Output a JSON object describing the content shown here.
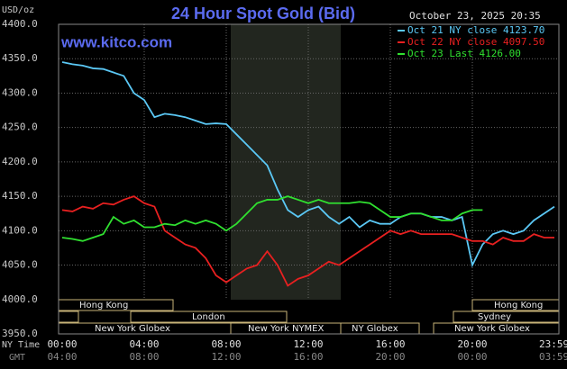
{
  "chart_data": {
    "type": "line",
    "title": "24 Hour Spot Gold (Bid)",
    "subtitle": "October 23, 2025 20:35",
    "y_label": "USD/oz",
    "watermark": "www.kitco.com",
    "x_row_labels": [
      "NY Time",
      "GMT"
    ],
    "x": [
      0,
      0.5,
      1,
      1.5,
      2,
      2.5,
      3,
      3.5,
      4,
      4.5,
      5,
      5.5,
      6,
      6.5,
      7,
      7.5,
      8,
      8.5,
      9,
      9.5,
      10,
      10.5,
      11,
      11.5,
      12,
      12.5,
      13,
      13.5,
      14,
      14.5,
      15,
      15.5,
      16,
      16.5,
      17,
      17.5,
      18,
      18.5,
      19,
      19.5,
      20,
      20.5,
      21,
      21.5,
      22,
      22.5,
      23,
      23.5,
      24
    ],
    "series": [
      {
        "name": "Oct 21 NY close 4123.70",
        "color": "#5bc8f5",
        "values": [
          4345,
          4342,
          4340,
          4336,
          4335,
          4330,
          4325,
          4300,
          4290,
          4265,
          4270,
          4268,
          4265,
          4260,
          4255,
          4256,
          4255,
          4240,
          4225,
          4210,
          4195,
          4160,
          4130,
          4120,
          4130,
          4135,
          4120,
          4110,
          4120,
          4105,
          4115,
          4110,
          4110,
          4120,
          4125,
          4125,
          4120,
          4120,
          4115,
          4120,
          4050,
          4080,
          4095,
          4100,
          4095,
          4100,
          4115,
          4125,
          4135
        ]
      },
      {
        "name": "Oct 22 NY close 4097.50",
        "color": "#e82020",
        "values": [
          4130,
          4128,
          4135,
          4132,
          4140,
          4138,
          4145,
          4150,
          4140,
          4135,
          4100,
          4090,
          4080,
          4075,
          4060,
          4035,
          4025,
          4035,
          4045,
          4050,
          4070,
          4050,
          4020,
          4030,
          4035,
          4045,
          4055,
          4050,
          4060,
          4070,
          4080,
          4090,
          4100,
          4095,
          4100,
          4095,
          4095,
          4095,
          4095,
          4090,
          4085,
          4085,
          4080,
          4090,
          4085,
          4085,
          4095,
          4090,
          4090
        ]
      },
      {
        "name": "Oct 23 Last 4126.00",
        "color": "#30e030",
        "values": [
          4090,
          4088,
          4085,
          4090,
          4095,
          4120,
          4110,
          4115,
          4105,
          4105,
          4110,
          4108,
          4115,
          4110,
          4115,
          4110,
          4100,
          4110,
          4125,
          4140,
          4145,
          4145,
          4150,
          4145,
          4140,
          4145,
          4140,
          4140,
          4140,
          4142,
          4140,
          4130,
          4120,
          4120,
          4125,
          4125,
          4120,
          4115,
          4115,
          4125,
          4130,
          4130,
          null,
          null,
          null,
          null,
          null,
          null,
          null
        ]
      }
    ],
    "xlim": [
      0,
      24
    ],
    "xticks": [
      {
        "value": 0,
        "label": "00:00"
      },
      {
        "value": 4,
        "label": "04:00"
      },
      {
        "value": 8,
        "label": "08:00"
      },
      {
        "value": 12,
        "label": "12:00"
      },
      {
        "value": 16,
        "label": "16:00"
      },
      {
        "value": 20,
        "label": "20:00"
      },
      {
        "value": 23.98,
        "label": "23:59"
      }
    ],
    "xticks_gmt": [
      {
        "value": 0,
        "label": "04:00"
      },
      {
        "value": 4,
        "label": "08:00"
      },
      {
        "value": 8,
        "label": "12:00"
      },
      {
        "value": 12,
        "label": "16:00"
      },
      {
        "value": 16,
        "label": "20:00"
      },
      {
        "value": 20,
        "label": "00:00"
      },
      {
        "value": 23.98,
        "label": "03:59"
      }
    ],
    "ylim": [
      3950,
      4400
    ],
    "yticks": [
      {
        "value": 3950,
        "label": "3950.0"
      },
      {
        "value": 4000,
        "label": "4000.0"
      },
      {
        "value": 4050,
        "label": "4050.0"
      },
      {
        "value": 4100,
        "label": "4100.0"
      },
      {
        "value": 4150,
        "label": "4150.0"
      },
      {
        "value": 4200,
        "label": "4200.0"
      },
      {
        "value": 4250,
        "label": "4250.0"
      },
      {
        "value": 4300,
        "label": "4300.0"
      },
      {
        "value": 4350,
        "label": "4350.0"
      },
      {
        "value": 4400,
        "label": "4400.0"
      }
    ],
    "grid": true,
    "sessions": [
      "Hong Kong",
      "London",
      "New York Globex",
      "New York NYMEX",
      "NY Globex",
      "Sydney",
      "Hong Kong",
      "New York Globex"
    ]
  }
}
